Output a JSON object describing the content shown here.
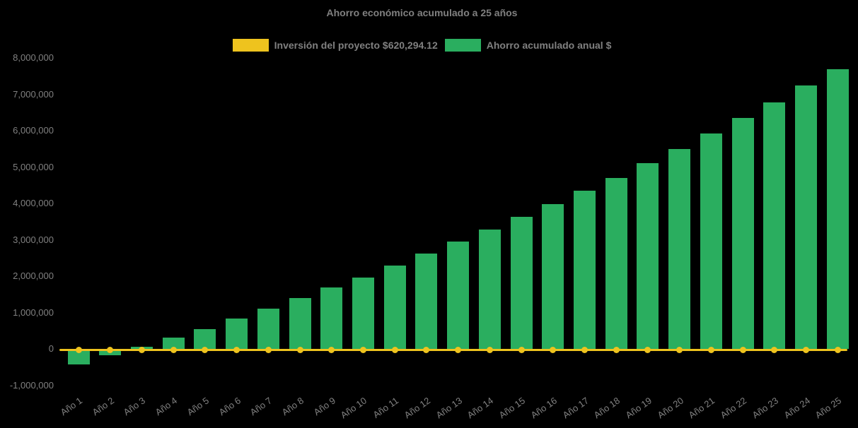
{
  "title": "Ahorro económico acumulado a 25 años",
  "legend": {
    "items": [
      {
        "label": "Inversión del proyecto $620,294.12",
        "color": "#eec31e"
      },
      {
        "label": "Ahorro acumulado anual $",
        "color": "#2aae5f"
      }
    ]
  },
  "colors": {
    "background": "#000000",
    "text": "#808080",
    "bar_green": "#2aae5f",
    "line_yellow": "#eec31e"
  },
  "chart_data": {
    "type": "bar",
    "title": "Ahorro económico acumulado a 25 años",
    "categories": [
      "Año 1",
      "Año 2",
      "Año 3",
      "Año 4",
      "Año 5",
      "Año 6",
      "Año 7",
      "Año 8",
      "Año 9",
      "Año 10",
      "Año 11",
      "Año 12",
      "Año 13",
      "Año 14",
      "Año 15",
      "Año 16",
      "Año 17",
      "Año 18",
      "Año 19",
      "Año 20",
      "Año 21",
      "Año 22",
      "Año 23",
      "Año 24",
      "Año 25"
    ],
    "series": [
      {
        "name": "Ahorro acumulado anual $",
        "type": "bar",
        "color": "#2aae5f",
        "values": [
          -430000,
          -180000,
          60000,
          310000,
          550000,
          840000,
          1100000,
          1400000,
          1680000,
          1970000,
          2290000,
          2620000,
          2960000,
          3280000,
          3640000,
          3980000,
          4350000,
          4700000,
          5100000,
          5500000,
          5930000,
          6350000,
          6770000,
          7240000,
          7690000
        ]
      },
      {
        "name": "Inversión del proyecto $620,294.12",
        "type": "line",
        "color": "#eec31e",
        "marker": "circle",
        "values": [
          0,
          0,
          0,
          0,
          0,
          0,
          0,
          0,
          0,
          0,
          0,
          0,
          0,
          0,
          0,
          0,
          0,
          0,
          0,
          0,
          0,
          0,
          0,
          0,
          0
        ]
      }
    ],
    "yticks": [
      8000000,
      7000000,
      6000000,
      5000000,
      4000000,
      3000000,
      2000000,
      1000000,
      0,
      -1000000
    ],
    "ylim": [
      -1000000,
      8000000
    ],
    "xlabel": "",
    "ylabel": "",
    "grid": false,
    "legend_position": "top",
    "x_label_rotation": -35
  }
}
